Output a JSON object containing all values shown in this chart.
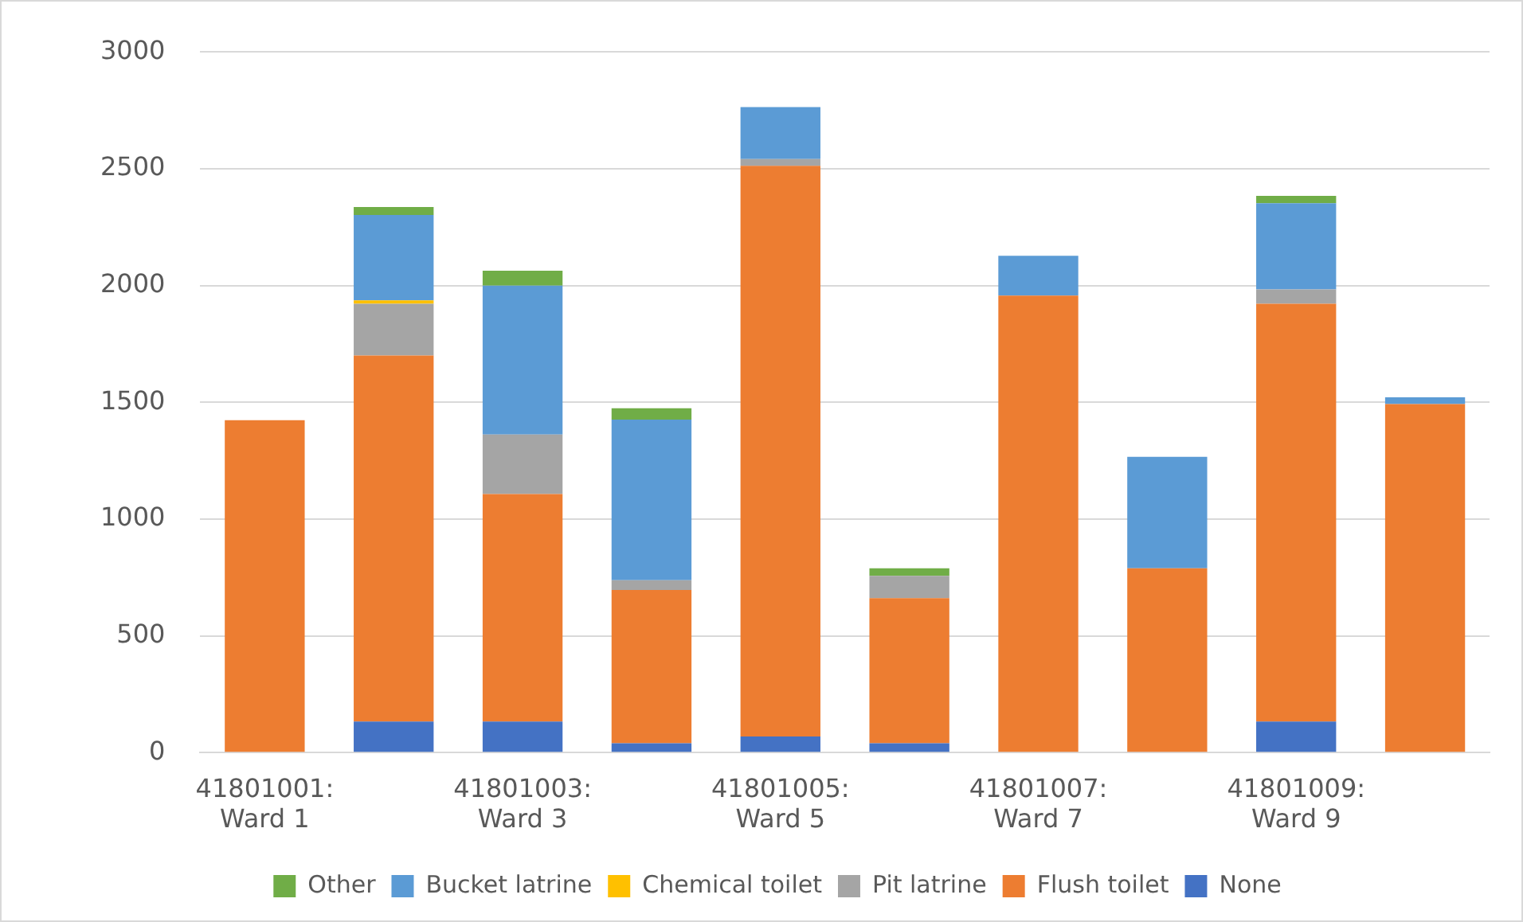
{
  "chart_data": {
    "type": "bar",
    "stacked": true,
    "categories": [
      "41801001: Ward 1",
      null,
      "41801003: Ward 3",
      null,
      "41801005: Ward 5",
      null,
      "41801007: Ward 7",
      null,
      "41801009: Ward 9",
      null
    ],
    "series": [
      {
        "name": "None",
        "color": "#4472c4",
        "values": [
          0,
          133,
          133,
          40,
          69,
          40,
          0,
          0,
          133,
          0
        ]
      },
      {
        "name": "Flush toilet",
        "color": "#ed7d31",
        "values": [
          1423,
          1567,
          974,
          656,
          2443,
          621,
          1957,
          789,
          1789,
          1492
        ]
      },
      {
        "name": "Pit latrine",
        "color": "#a5a5a5",
        "values": [
          0,
          222,
          255,
          42,
          29,
          96,
          0,
          0,
          61,
          0
        ]
      },
      {
        "name": "Chemical toilet",
        "color": "#ffc000",
        "values": [
          0,
          14,
          0,
          0,
          0,
          0,
          0,
          0,
          0,
          0
        ]
      },
      {
        "name": "Bucket latrine",
        "color": "#5b9bd5",
        "values": [
          0,
          366,
          637,
          688,
          223,
          0,
          170,
          477,
          369,
          29
        ]
      },
      {
        "name": "Other",
        "color": "#70ad47",
        "values": [
          0,
          34,
          64,
          48,
          0,
          32,
          0,
          0,
          32,
          0
        ]
      }
    ],
    "ylim": [
      0,
      3000
    ],
    "yticks": [
      0,
      500,
      1000,
      1500,
      2000,
      2500,
      3000
    ],
    "grid": "y",
    "legend": "bottom"
  }
}
